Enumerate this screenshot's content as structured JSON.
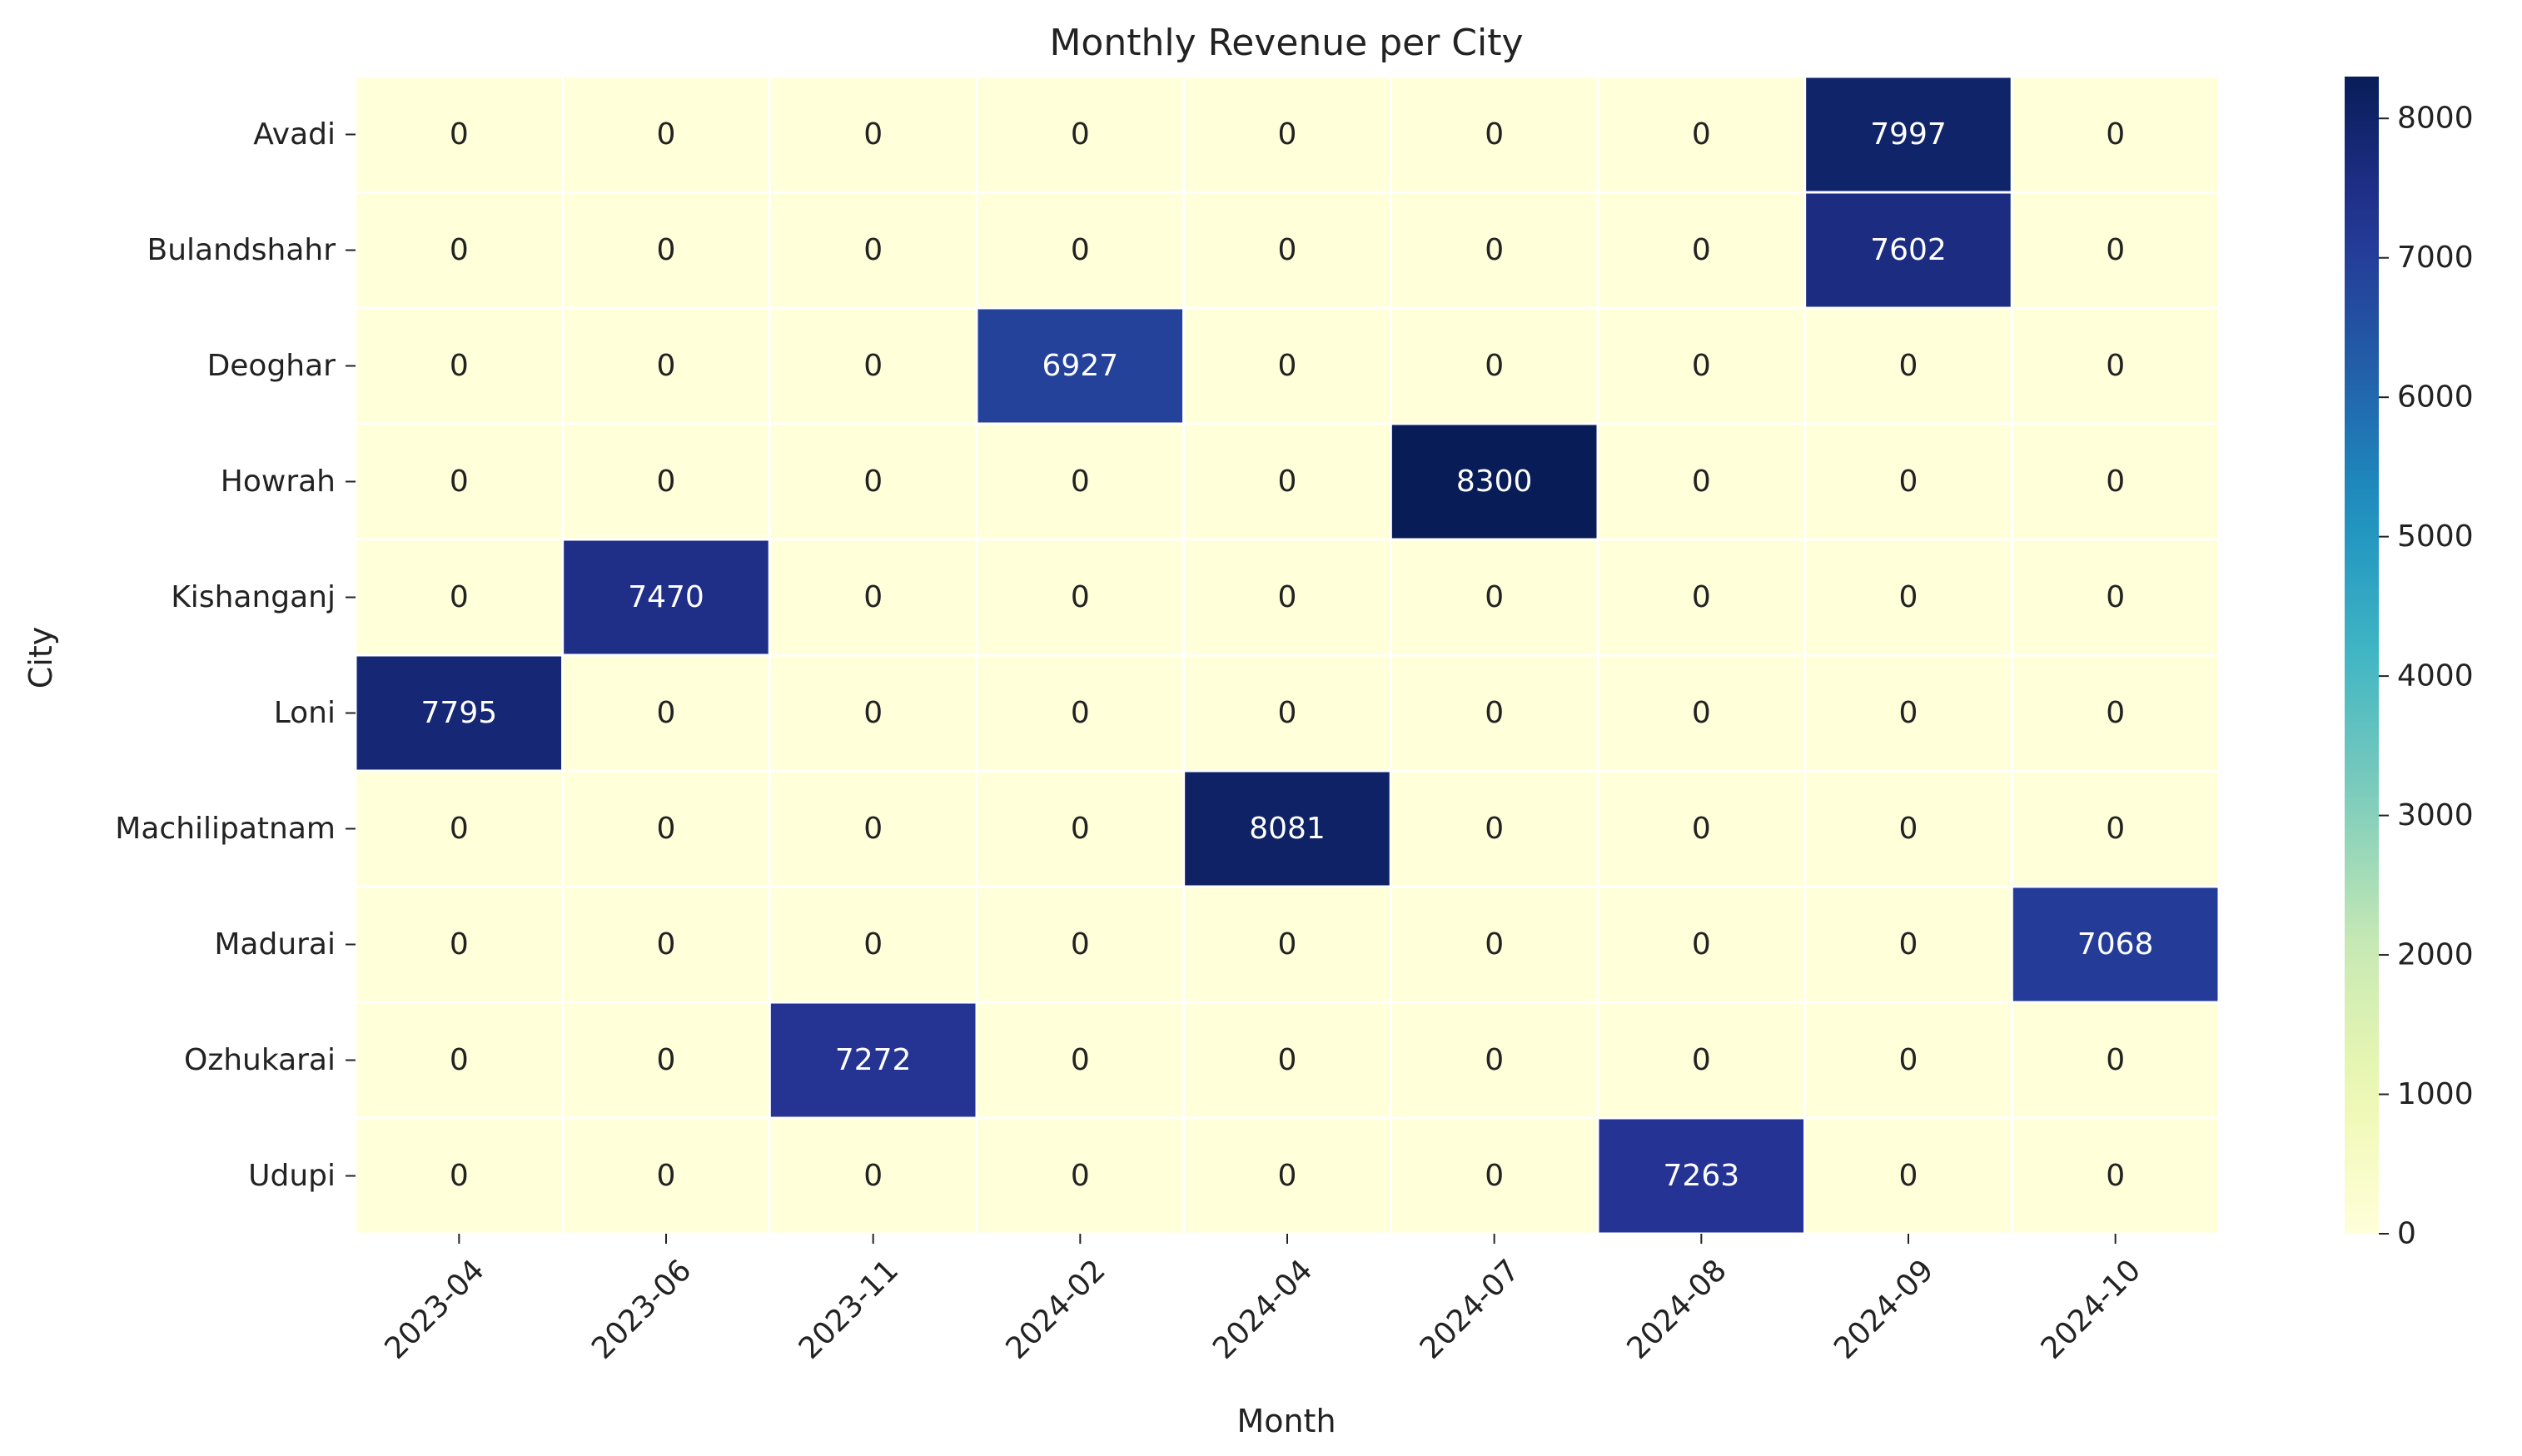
{
  "chart_data": {
    "type": "heatmap",
    "title": "Monthly Revenue per City",
    "xlabel": "Month",
    "ylabel": "City",
    "x": [
      "2023-04",
      "2023-06",
      "2023-11",
      "2024-02",
      "2024-04",
      "2024-07",
      "2024-08",
      "2024-09",
      "2024-10"
    ],
    "y": [
      "Avadi",
      "Bulandshahr",
      "Deoghar",
      "Howrah",
      "Kishanganj",
      "Loni",
      "Machilipatnam",
      "Madurai",
      "Ozhukarai",
      "Udupi"
    ],
    "values": [
      [
        0,
        0,
        0,
        0,
        0,
        0,
        0,
        7997,
        0
      ],
      [
        0,
        0,
        0,
        0,
        0,
        0,
        0,
        7602,
        0
      ],
      [
        0,
        0,
        0,
        6927,
        0,
        0,
        0,
        0,
        0
      ],
      [
        0,
        0,
        0,
        0,
        0,
        8300,
        0,
        0,
        0
      ],
      [
        0,
        7470,
        0,
        0,
        0,
        0,
        0,
        0,
        0
      ],
      [
        7795,
        0,
        0,
        0,
        0,
        0,
        0,
        0,
        0
      ],
      [
        0,
        0,
        0,
        0,
        8081,
        0,
        0,
        0,
        0
      ],
      [
        0,
        0,
        0,
        0,
        0,
        0,
        0,
        0,
        7068
      ],
      [
        0,
        0,
        7272,
        0,
        0,
        0,
        0,
        0,
        0
      ],
      [
        0,
        0,
        0,
        0,
        0,
        0,
        7263,
        0,
        0
      ]
    ],
    "colorbar": {
      "min": 0,
      "max": 8300,
      "ticks": [
        0,
        1000,
        2000,
        3000,
        4000,
        5000,
        6000,
        7000,
        8000
      ]
    },
    "colormap": "YlGnBu",
    "annotated": true
  }
}
